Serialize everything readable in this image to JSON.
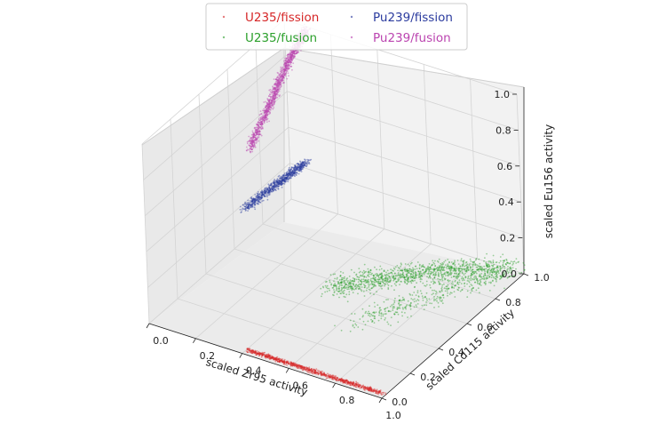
{
  "chart_data": {
    "type": "scatter",
    "projection": "3d",
    "xlabel": "scaled Zr95 activity",
    "ylabel": "scaled Cd115 activity",
    "zlabel": "scaled Eu156 activity",
    "xlim": [
      0.0,
      1.0
    ],
    "ylim": [
      0.0,
      1.0
    ],
    "zlim": [
      0.0,
      1.0
    ],
    "x_ticks": [
      "0.0",
      "0.2",
      "0.4",
      "0.6",
      "0.8",
      "1.0"
    ],
    "y_ticks": [
      "0.0",
      "0.2",
      "0.4",
      "0.6",
      "0.8",
      "1.0"
    ],
    "z_ticks": [
      "0.0",
      "0.2",
      "0.4",
      "0.6",
      "0.8",
      "1.0"
    ],
    "grid": true,
    "legend_position": "top-center",
    "series": [
      {
        "name": "U235/fission",
        "color": "#d62728",
        "approx_points": [
          {
            "x": 0.4,
            "y": 0.03,
            "z": 0.0
          },
          {
            "x": 0.55,
            "y": 0.03,
            "z": 0.0
          },
          {
            "x": 0.7,
            "y": 0.03,
            "z": 0.0
          },
          {
            "x": 0.85,
            "y": 0.03,
            "z": 0.0
          },
          {
            "x": 0.99,
            "y": 0.03,
            "z": 0.0
          }
        ]
      },
      {
        "name": "U235/fusion",
        "color": "#2ca02c",
        "approx_points": [
          {
            "x": 0.45,
            "y": 0.55,
            "z": 0.01
          },
          {
            "x": 0.6,
            "y": 0.7,
            "z": 0.02
          },
          {
            "x": 0.75,
            "y": 0.85,
            "z": 0.02
          },
          {
            "x": 0.95,
            "y": 0.98,
            "z": 0.02
          },
          {
            "x": 0.65,
            "y": 0.4,
            "z": 0.01
          }
        ]
      },
      {
        "name": "Pu239/fission",
        "color": "#2b3b9e",
        "approx_points": [
          {
            "x": 0.02,
            "y": 0.65,
            "z": 0.2
          },
          {
            "x": 0.05,
            "y": 0.85,
            "z": 0.22
          },
          {
            "x": 0.08,
            "y": 0.99,
            "z": 0.25
          }
        ]
      },
      {
        "name": "Pu239/fusion",
        "color": "#bb44b0",
        "approx_points": [
          {
            "x": 0.02,
            "y": 0.7,
            "z": 0.5
          },
          {
            "x": 0.04,
            "y": 0.8,
            "z": 0.65
          },
          {
            "x": 0.06,
            "y": 0.88,
            "z": 0.8
          },
          {
            "x": 0.08,
            "y": 0.95,
            "z": 0.92
          },
          {
            "x": 0.1,
            "y": 0.99,
            "z": 0.98
          }
        ]
      }
    ]
  }
}
